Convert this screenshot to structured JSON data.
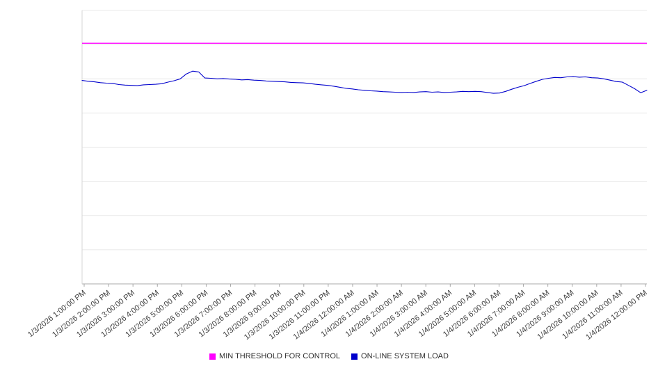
{
  "chart_data": {
    "type": "line",
    "title": "",
    "xlabel": "",
    "ylabel": "",
    "ylim": [
      0,
      100
    ],
    "y_axis_labels_visible": false,
    "y_gridline_divisions": 8,
    "grid": "horizontal",
    "legend_position": "bottom-center",
    "x_range": [
      "1/3/2026 1:00:00 PM",
      "1/4/2026 12:00:00 PM"
    ],
    "x_tick_labels": [
      "1/3/2026 1:00:00 PM",
      "1/3/2026 2:00:00 PM",
      "1/3/2026 3:00:00 PM",
      "1/3/2026 4:00:00 PM",
      "1/3/2026 5:00:00 PM",
      "1/3/2026 6:00:00 PM",
      "1/3/2026 7:00:00 PM",
      "1/3/2026 8:00:00 PM",
      "1/3/2026 9:00:00 PM",
      "1/3/2026 10:00:00 PM",
      "1/3/2026 11:00:00 PM",
      "1/4/2026 12:00:00 AM",
      "1/4/2026 1:00:00 AM",
      "1/4/2026 2:00:00 AM",
      "1/4/2026 3:00:00 AM",
      "1/4/2026 4:00:00 AM",
      "1/4/2026 5:00:00 AM",
      "1/4/2026 6:00:00 AM",
      "1/4/2026 7:00:00 AM",
      "1/4/2026 8:00:00 AM",
      "1/4/2026 9:00:00 AM",
      "1/4/2026 10:00:00 AM",
      "1/4/2026 11:00:00 AM",
      "1/4/2026 12:00:00 PM"
    ],
    "series": [
      {
        "name": "MIN THRESHOLD FOR CONTROL",
        "role": "threshold",
        "color": "#ff00ff",
        "value": 88
      },
      {
        "name": "ON-LINE SYSTEM LOAD",
        "role": "data",
        "color": "#0000cc",
        "values_per_hour": 4,
        "values": [
          74.4,
          74.1,
          73.9,
          73.6,
          73.4,
          73.3,
          72.9,
          72.7,
          72.6,
          72.5,
          72.8,
          72.9,
          73.0,
          73.2,
          73.8,
          74.3,
          75.0,
          76.8,
          77.8,
          77.5,
          75.3,
          75.2,
          75.0,
          75.1,
          74.9,
          74.8,
          74.6,
          74.7,
          74.5,
          74.4,
          74.2,
          74.1,
          74.0,
          73.9,
          73.7,
          73.6,
          73.5,
          73.3,
          73.0,
          72.8,
          72.6,
          72.3,
          71.9,
          71.5,
          71.3,
          71.0,
          70.8,
          70.6,
          70.5,
          70.3,
          70.2,
          70.1,
          70.0,
          70.1,
          70.0,
          70.2,
          70.3,
          70.1,
          70.2,
          70.0,
          70.1,
          70.2,
          70.4,
          70.3,
          70.4,
          70.3,
          70.0,
          69.7,
          69.8,
          70.4,
          71.2,
          71.9,
          72.5,
          73.3,
          74.1,
          74.8,
          75.2,
          75.5,
          75.4,
          75.7,
          75.8,
          75.6,
          75.7,
          75.4,
          75.3,
          75.0,
          74.5,
          74.0,
          73.8,
          72.6,
          71.4,
          69.9,
          70.8
        ]
      }
    ]
  }
}
